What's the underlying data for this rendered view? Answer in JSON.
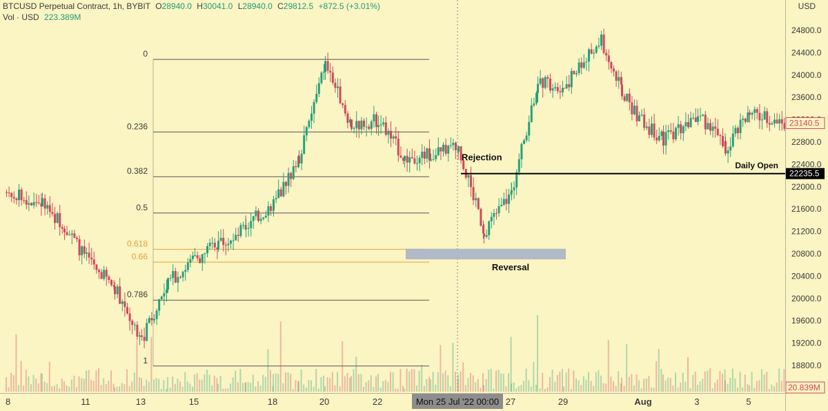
{
  "header": {
    "symbol": "BTCUSD Perpetual Contract, 1h, BYBIT",
    "open_label": "O",
    "open": "28940.0",
    "high_label": "H",
    "high": "30041.0",
    "low_label": "L",
    "low": "28940.0",
    "close_label": "C",
    "close": "29812.5",
    "change": "+872.5 (+3.01%)",
    "vol_label": "Vol · USD",
    "vol_value": "223.389M"
  },
  "axis": {
    "currency": "USD",
    "price_ticks": [
      24800,
      24400,
      24000,
      23600,
      23200,
      22800,
      22400,
      22000,
      21600,
      21200,
      20800,
      20400,
      20000,
      19600,
      19200,
      18800
    ],
    "price_tick_labels": [
      "24800.0",
      "24400.0",
      "24000.0",
      "23600.0",
      "23200.0",
      "22800.0",
      "22400.0",
      "22000.0",
      "21600.0",
      "21200.0",
      "20800.0",
      "20400.0",
      "20000.0",
      "19600.0",
      "19200.0",
      "18800.0"
    ],
    "time_labels": [
      "8",
      "11",
      "13",
      "15",
      "18",
      "20",
      "22",
      "27",
      "29",
      "Aug",
      "3",
      "5"
    ],
    "crosshair_time_label": "Mon 25 Jul '22   00:00",
    "last_price_label": "23140.5",
    "daily_open_price_label": "22235.5",
    "volume_label": "20.839M"
  },
  "colors": {
    "background": "#fbf4c3",
    "up": "#26a17b",
    "down": "#d1485c",
    "fib_line": "#555555",
    "fib_golden": "#e6a23c",
    "zone": "#a9b4c8",
    "level": "#000000"
  },
  "chart_data": {
    "type": "candlestick",
    "symbol": "BTCUSD Perpetual Contract",
    "interval": "1h",
    "exchange": "BYBIT",
    "y_unit": "USD",
    "ylim": [
      18550,
      25200
    ],
    "x_dates": [
      "8",
      "11",
      "13",
      "15",
      "18",
      "20",
      "22",
      "25",
      "27",
      "29",
      "Aug",
      "3",
      "5"
    ],
    "price_path": [
      {
        "t": "8",
        "price": 21900
      },
      {
        "t": "9",
        "price": 21700
      },
      {
        "t": "10",
        "price": 21300
      },
      {
        "t": "11",
        "price": 20700
      },
      {
        "t": "12",
        "price": 20200
      },
      {
        "t": "13",
        "price": 19250
      },
      {
        "t": "14",
        "price": 20300
      },
      {
        "t": "15",
        "price": 20700
      },
      {
        "t": "16",
        "price": 21000
      },
      {
        "t": "17",
        "price": 21300
      },
      {
        "t": "18",
        "price": 21700
      },
      {
        "t": "19",
        "price": 22500
      },
      {
        "t": "20",
        "price": 24200
      },
      {
        "t": "21",
        "price": 23100
      },
      {
        "t": "22",
        "price": 23200
      },
      {
        "t": "23",
        "price": 22500
      },
      {
        "t": "24",
        "price": 22600
      },
      {
        "t": "25",
        "price": 22700
      },
      {
        "t": "26",
        "price": 21200
      },
      {
        "t": "27",
        "price": 21900
      },
      {
        "t": "28",
        "price": 23900
      },
      {
        "t": "29",
        "price": 23800
      },
      {
        "t": "30",
        "price": 24600
      },
      {
        "t": "31",
        "price": 23700
      },
      {
        "t": "Aug",
        "price": 23200
      },
      {
        "t": "2",
        "price": 22850
      },
      {
        "t": "3",
        "price": 23300
      },
      {
        "t": "4",
        "price": 22700
      },
      {
        "t": "5",
        "price": 23300
      },
      {
        "t": "6",
        "price": 23140
      }
    ],
    "fibonacci": [
      {
        "level": "0",
        "price": 24280
      },
      {
        "level": "0.236",
        "price": 22980
      },
      {
        "level": "0.382",
        "price": 22180
      },
      {
        "level": "0.5",
        "price": 21530
      },
      {
        "level": "0.618",
        "price": 20880
      },
      {
        "level": "0.66",
        "price": 20650
      },
      {
        "level": "0.786",
        "price": 19970
      },
      {
        "level": "1",
        "price": 18790
      }
    ],
    "golden_levels": [
      "0.618",
      "0.66"
    ],
    "support_zone": {
      "from": 20700,
      "to": 20890
    },
    "daily_open": 22235.5,
    "last_price": 23140.5,
    "annotations": [
      {
        "text": "Rejection",
        "price": 22400
      },
      {
        "text": "Reversal",
        "price": 20650
      },
      {
        "text": "Daily Open",
        "price": 22330
      }
    ]
  }
}
